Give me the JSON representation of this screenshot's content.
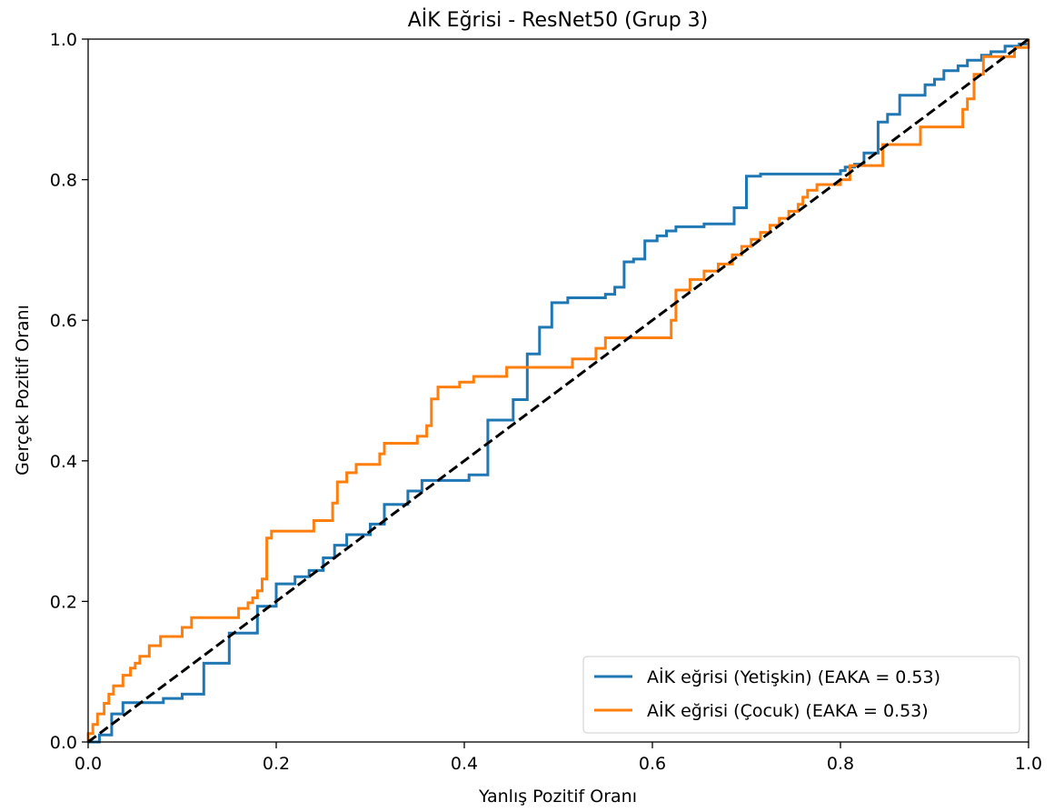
{
  "chart_data": {
    "type": "line",
    "title": "AİK Eğrisi - ResNet50 (Grup 3)",
    "xlabel": "Yanlış Pozitif Oranı",
    "ylabel": "Gerçek Pozitif Oranı",
    "xlim": [
      0.0,
      1.0
    ],
    "ylim": [
      0.0,
      1.0
    ],
    "xticks": [
      "0.0",
      "0.2",
      "0.4",
      "0.6",
      "0.8",
      "1.0"
    ],
    "yticks": [
      "0.0",
      "0.2",
      "0.4",
      "0.6",
      "0.8",
      "1.0"
    ],
    "grid": false,
    "legend_position": "lower-right",
    "series": [
      {
        "name": "AİK eğrisi (Yetişkin) (EAKA = 0.53)",
        "color": "#1f77b4",
        "style": "solid",
        "points": [
          [
            0.0,
            0.0
          ],
          [
            0.012,
            0.0
          ],
          [
            0.012,
            0.01
          ],
          [
            0.025,
            0.01
          ],
          [
            0.025,
            0.04
          ],
          [
            0.037,
            0.04
          ],
          [
            0.037,
            0.056
          ],
          [
            0.08,
            0.056
          ],
          [
            0.08,
            0.062
          ],
          [
            0.1,
            0.062
          ],
          [
            0.1,
            0.068
          ],
          [
            0.123,
            0.068
          ],
          [
            0.123,
            0.112
          ],
          [
            0.15,
            0.112
          ],
          [
            0.15,
            0.155
          ],
          [
            0.18,
            0.155
          ],
          [
            0.18,
            0.193
          ],
          [
            0.2,
            0.193
          ],
          [
            0.2,
            0.225
          ],
          [
            0.22,
            0.225
          ],
          [
            0.22,
            0.235
          ],
          [
            0.235,
            0.235
          ],
          [
            0.235,
            0.244
          ],
          [
            0.25,
            0.244
          ],
          [
            0.25,
            0.262
          ],
          [
            0.262,
            0.262
          ],
          [
            0.262,
            0.28
          ],
          [
            0.275,
            0.28
          ],
          [
            0.275,
            0.295
          ],
          [
            0.3,
            0.295
          ],
          [
            0.3,
            0.31
          ],
          [
            0.315,
            0.31
          ],
          [
            0.315,
            0.338
          ],
          [
            0.34,
            0.338
          ],
          [
            0.34,
            0.357
          ],
          [
            0.355,
            0.357
          ],
          [
            0.355,
            0.372
          ],
          [
            0.405,
            0.372
          ],
          [
            0.405,
            0.38
          ],
          [
            0.425,
            0.38
          ],
          [
            0.425,
            0.458
          ],
          [
            0.452,
            0.458
          ],
          [
            0.452,
            0.487
          ],
          [
            0.467,
            0.487
          ],
          [
            0.467,
            0.552
          ],
          [
            0.48,
            0.552
          ],
          [
            0.48,
            0.59
          ],
          [
            0.493,
            0.59
          ],
          [
            0.493,
            0.625
          ],
          [
            0.51,
            0.625
          ],
          [
            0.51,
            0.632
          ],
          [
            0.55,
            0.632
          ],
          [
            0.55,
            0.637
          ],
          [
            0.56,
            0.637
          ],
          [
            0.56,
            0.647
          ],
          [
            0.57,
            0.647
          ],
          [
            0.57,
            0.683
          ],
          [
            0.58,
            0.683
          ],
          [
            0.58,
            0.687
          ],
          [
            0.592,
            0.687
          ],
          [
            0.592,
            0.713
          ],
          [
            0.605,
            0.713
          ],
          [
            0.605,
            0.72
          ],
          [
            0.615,
            0.72
          ],
          [
            0.615,
            0.727
          ],
          [
            0.625,
            0.727
          ],
          [
            0.625,
            0.733
          ],
          [
            0.655,
            0.733
          ],
          [
            0.655,
            0.737
          ],
          [
            0.687,
            0.737
          ],
          [
            0.687,
            0.76
          ],
          [
            0.7,
            0.76
          ],
          [
            0.7,
            0.805
          ],
          [
            0.715,
            0.805
          ],
          [
            0.715,
            0.808
          ],
          [
            0.8,
            0.808
          ],
          [
            0.8,
            0.813
          ],
          [
            0.805,
            0.813
          ],
          [
            0.805,
            0.818
          ],
          [
            0.815,
            0.818
          ],
          [
            0.815,
            0.822
          ],
          [
            0.825,
            0.822
          ],
          [
            0.825,
            0.838
          ],
          [
            0.84,
            0.838
          ],
          [
            0.84,
            0.882
          ],
          [
            0.85,
            0.882
          ],
          [
            0.85,
            0.893
          ],
          [
            0.863,
            0.893
          ],
          [
            0.863,
            0.92
          ],
          [
            0.89,
            0.92
          ],
          [
            0.89,
            0.935
          ],
          [
            0.9,
            0.935
          ],
          [
            0.9,
            0.943
          ],
          [
            0.91,
            0.943
          ],
          [
            0.91,
            0.955
          ],
          [
            0.925,
            0.955
          ],
          [
            0.925,
            0.962
          ],
          [
            0.935,
            0.962
          ],
          [
            0.935,
            0.97
          ],
          [
            0.95,
            0.97
          ],
          [
            0.95,
            0.977
          ],
          [
            0.96,
            0.977
          ],
          [
            0.96,
            0.982
          ],
          [
            0.975,
            0.982
          ],
          [
            0.975,
            0.99
          ],
          [
            0.99,
            0.99
          ],
          [
            0.99,
            0.993
          ],
          [
            1.0,
            0.993
          ],
          [
            1.0,
            1.0
          ]
        ]
      },
      {
        "name": "AİK eğrisi (Çocuk) (EAKA = 0.53)",
        "color": "#ff7f0e",
        "style": "solid",
        "points": [
          [
            0.0,
            0.0
          ],
          [
            0.0,
            0.012
          ],
          [
            0.005,
            0.012
          ],
          [
            0.005,
            0.025
          ],
          [
            0.01,
            0.025
          ],
          [
            0.01,
            0.04
          ],
          [
            0.017,
            0.04
          ],
          [
            0.017,
            0.055
          ],
          [
            0.022,
            0.055
          ],
          [
            0.022,
            0.068
          ],
          [
            0.027,
            0.068
          ],
          [
            0.027,
            0.08
          ],
          [
            0.037,
            0.08
          ],
          [
            0.037,
            0.095
          ],
          [
            0.045,
            0.095
          ],
          [
            0.045,
            0.105
          ],
          [
            0.05,
            0.105
          ],
          [
            0.05,
            0.112
          ],
          [
            0.055,
            0.112
          ],
          [
            0.055,
            0.122
          ],
          [
            0.065,
            0.122
          ],
          [
            0.065,
            0.137
          ],
          [
            0.077,
            0.137
          ],
          [
            0.077,
            0.15
          ],
          [
            0.1,
            0.15
          ],
          [
            0.1,
            0.163
          ],
          [
            0.11,
            0.163
          ],
          [
            0.11,
            0.177
          ],
          [
            0.16,
            0.177
          ],
          [
            0.16,
            0.19
          ],
          [
            0.17,
            0.19
          ],
          [
            0.17,
            0.198
          ],
          [
            0.175,
            0.198
          ],
          [
            0.175,
            0.205
          ],
          [
            0.18,
            0.205
          ],
          [
            0.18,
            0.215
          ],
          [
            0.185,
            0.215
          ],
          [
            0.185,
            0.232
          ],
          [
            0.19,
            0.232
          ],
          [
            0.19,
            0.29
          ],
          [
            0.195,
            0.29
          ],
          [
            0.195,
            0.3
          ],
          [
            0.24,
            0.3
          ],
          [
            0.24,
            0.315
          ],
          [
            0.26,
            0.315
          ],
          [
            0.26,
            0.34
          ],
          [
            0.265,
            0.34
          ],
          [
            0.265,
            0.37
          ],
          [
            0.275,
            0.37
          ],
          [
            0.275,
            0.383
          ],
          [
            0.285,
            0.383
          ],
          [
            0.285,
            0.395
          ],
          [
            0.31,
            0.395
          ],
          [
            0.31,
            0.41
          ],
          [
            0.315,
            0.41
          ],
          [
            0.315,
            0.425
          ],
          [
            0.35,
            0.425
          ],
          [
            0.35,
            0.435
          ],
          [
            0.36,
            0.435
          ],
          [
            0.36,
            0.45
          ],
          [
            0.365,
            0.45
          ],
          [
            0.365,
            0.488
          ],
          [
            0.372,
            0.488
          ],
          [
            0.372,
            0.505
          ],
          [
            0.395,
            0.505
          ],
          [
            0.395,
            0.512
          ],
          [
            0.41,
            0.512
          ],
          [
            0.41,
            0.52
          ],
          [
            0.445,
            0.52
          ],
          [
            0.445,
            0.533
          ],
          [
            0.515,
            0.533
          ],
          [
            0.515,
            0.545
          ],
          [
            0.54,
            0.545
          ],
          [
            0.54,
            0.56
          ],
          [
            0.55,
            0.56
          ],
          [
            0.55,
            0.575
          ],
          [
            0.62,
            0.575
          ],
          [
            0.62,
            0.6
          ],
          [
            0.625,
            0.6
          ],
          [
            0.625,
            0.643
          ],
          [
            0.64,
            0.643
          ],
          [
            0.64,
            0.658
          ],
          [
            0.655,
            0.658
          ],
          [
            0.655,
            0.67
          ],
          [
            0.67,
            0.67
          ],
          [
            0.67,
            0.68
          ],
          [
            0.685,
            0.68
          ],
          [
            0.685,
            0.693
          ],
          [
            0.695,
            0.693
          ],
          [
            0.695,
            0.705
          ],
          [
            0.705,
            0.705
          ],
          [
            0.705,
            0.715
          ],
          [
            0.715,
            0.715
          ],
          [
            0.715,
            0.725
          ],
          [
            0.725,
            0.725
          ],
          [
            0.725,
            0.735
          ],
          [
            0.735,
            0.735
          ],
          [
            0.735,
            0.745
          ],
          [
            0.745,
            0.745
          ],
          [
            0.745,
            0.755
          ],
          [
            0.755,
            0.755
          ],
          [
            0.755,
            0.765
          ],
          [
            0.76,
            0.765
          ],
          [
            0.76,
            0.775
          ],
          [
            0.765,
            0.775
          ],
          [
            0.765,
            0.785
          ],
          [
            0.775,
            0.785
          ],
          [
            0.775,
            0.793
          ],
          [
            0.8,
            0.793
          ],
          [
            0.8,
            0.8
          ],
          [
            0.81,
            0.8
          ],
          [
            0.81,
            0.82
          ],
          [
            0.845,
            0.82
          ],
          [
            0.845,
            0.85
          ],
          [
            0.885,
            0.85
          ],
          [
            0.885,
            0.875
          ],
          [
            0.93,
            0.875
          ],
          [
            0.93,
            0.9
          ],
          [
            0.935,
            0.9
          ],
          [
            0.935,
            0.915
          ],
          [
            0.942,
            0.915
          ],
          [
            0.942,
            0.95
          ],
          [
            0.952,
            0.95
          ],
          [
            0.952,
            0.975
          ],
          [
            0.985,
            0.975
          ],
          [
            0.985,
            0.988
          ],
          [
            1.0,
            0.988
          ],
          [
            1.0,
            1.0
          ]
        ]
      },
      {
        "name": "",
        "color": "#000000",
        "style": "dashed",
        "points": [
          [
            0.0,
            0.0
          ],
          [
            1.0,
            1.0
          ]
        ]
      }
    ]
  }
}
